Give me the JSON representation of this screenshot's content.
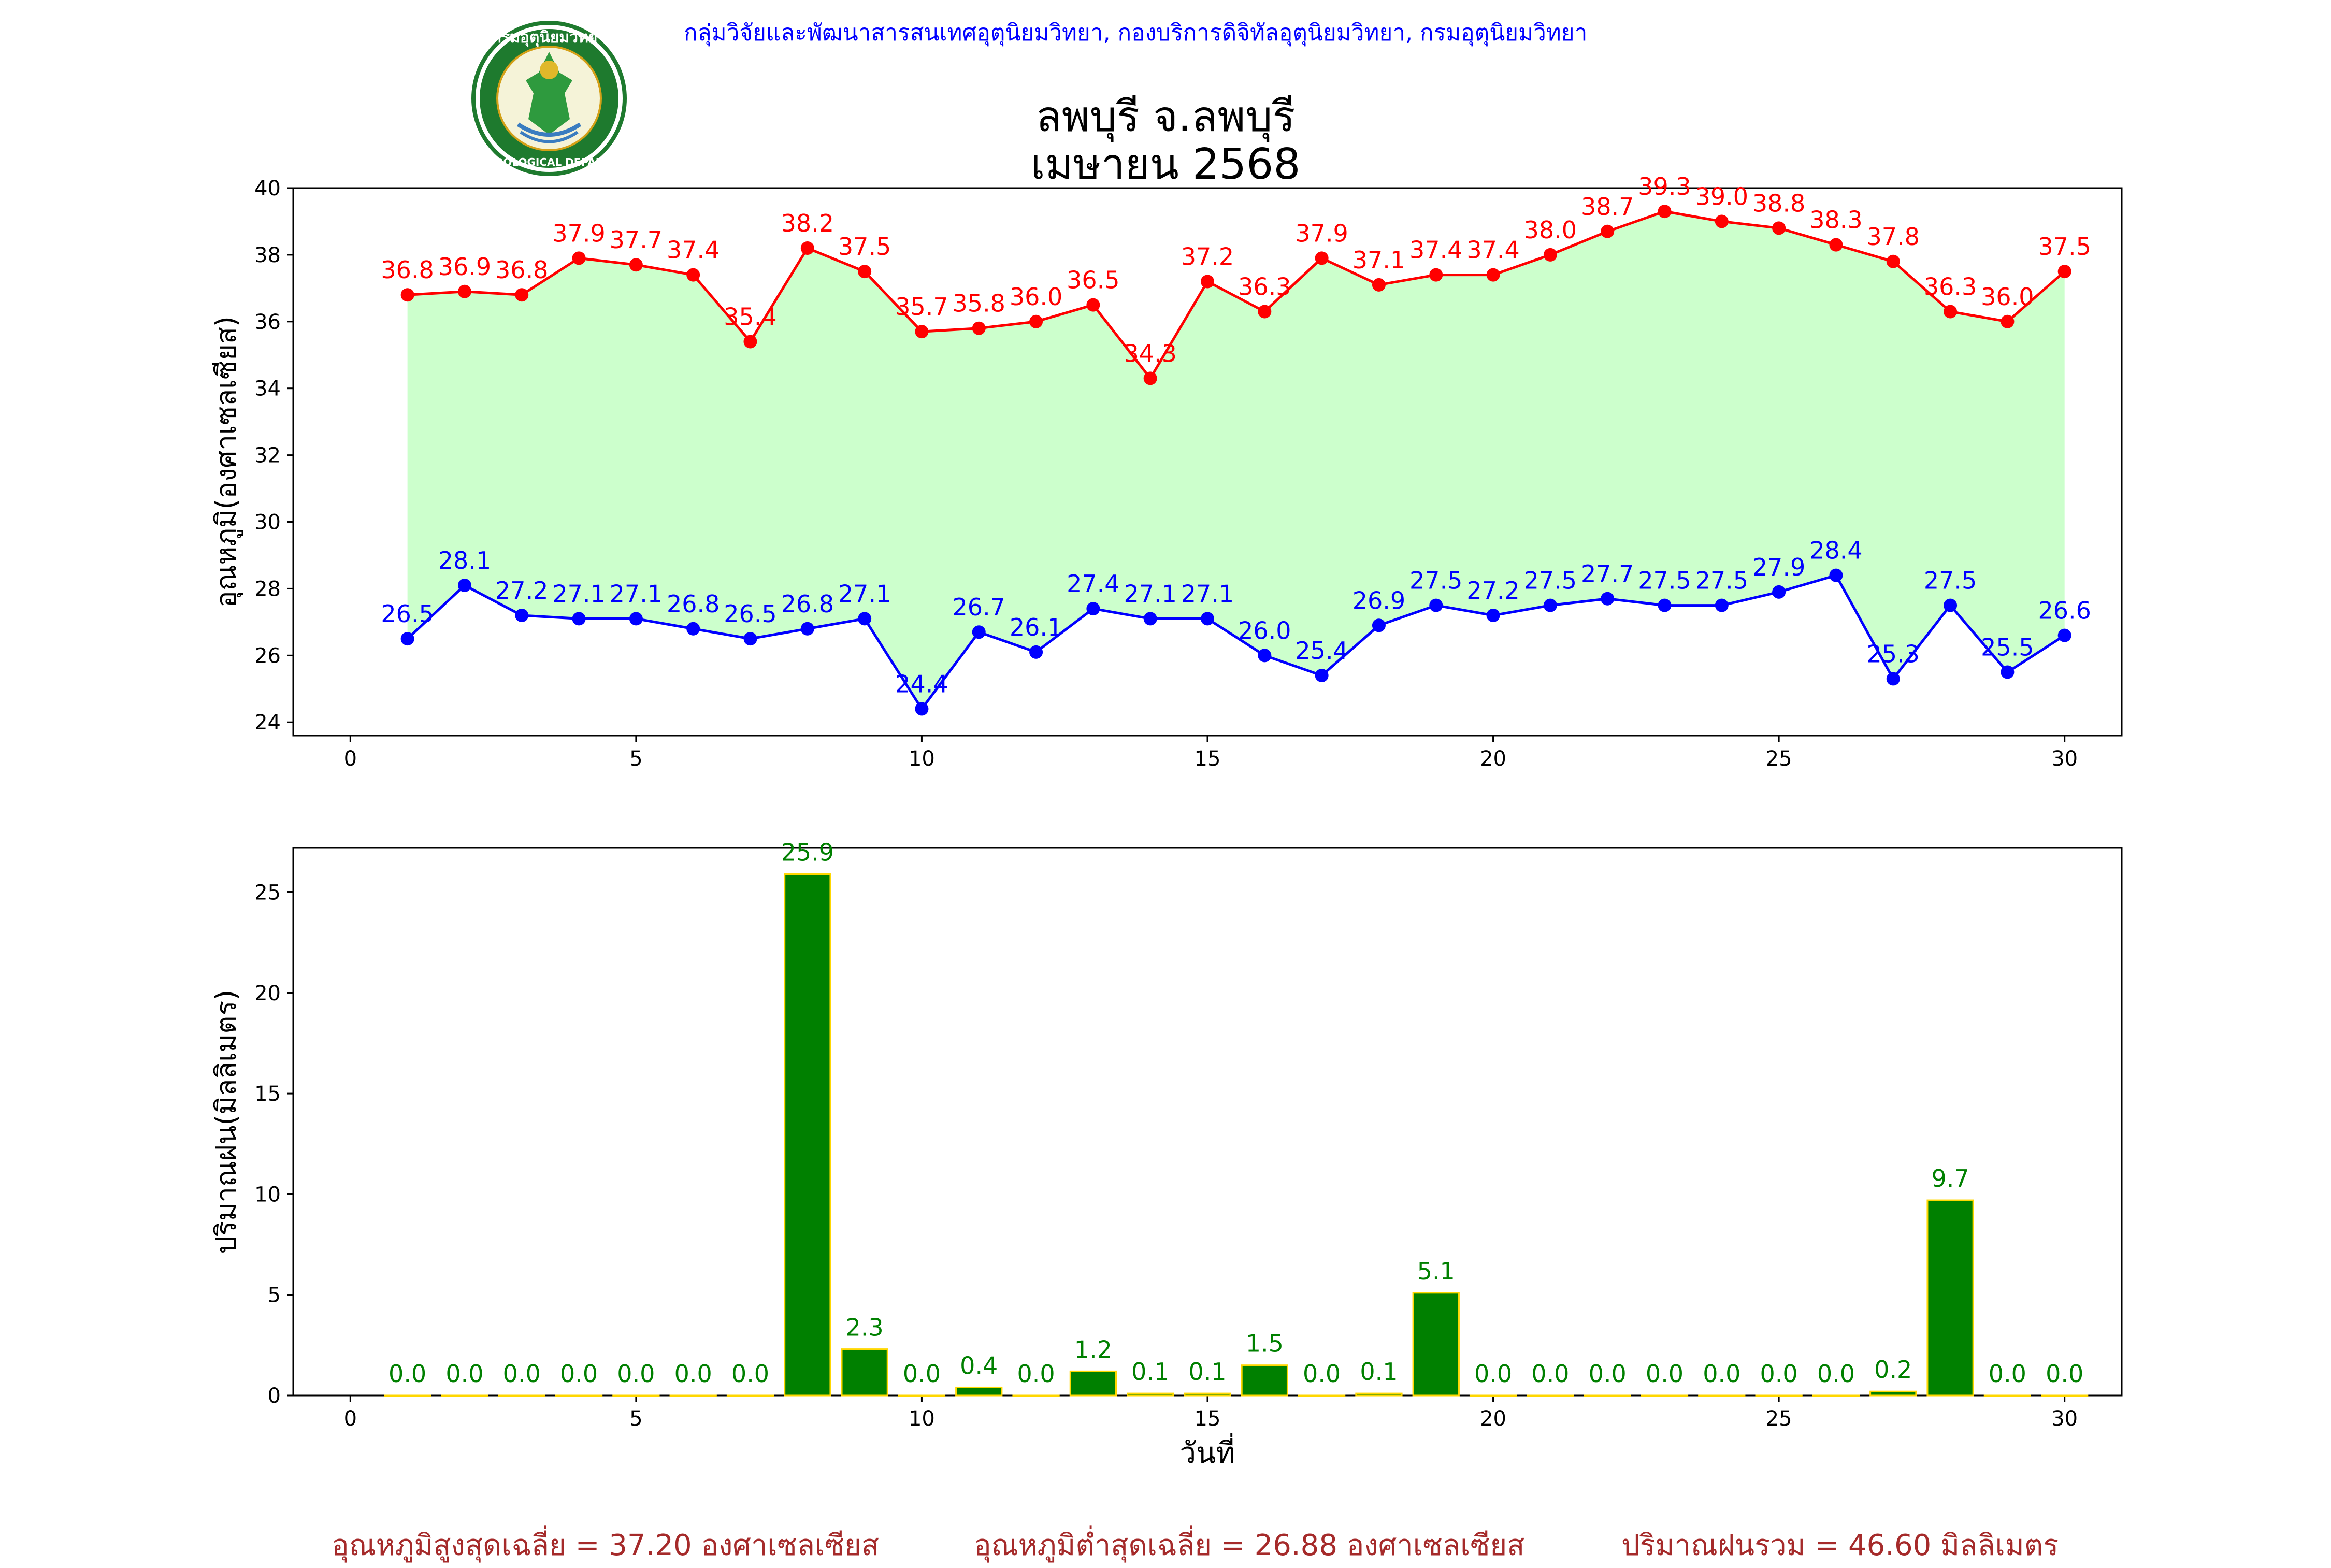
{
  "header": {
    "agency": "กลุ่มวิจัยและพัฒนาสารสนเทศอุตุนิยมวิทยา, กองบริการดิจิทัลอุตุนิยมวิทยา, กรมอุตุนิยมวิทยา",
    "title_line1": "ลพบุรี จ.ลพบุรี",
    "title_line2": "เมษายน 2568",
    "logo_text_top": "กรมอุตุนิยมวิทยา",
    "logo_text_bottom": "METEOROLOGICAL DEPARTMENT"
  },
  "colors": {
    "max": "#ff0000",
    "min": "#0000ff",
    "fill": "#ccffcc",
    "rain_bar": "#008000",
    "rain_edge": "#ffd700",
    "rain_label": "#008000",
    "footer": "#a52a2a",
    "header": "#0000ff"
  },
  "chart_data": [
    {
      "type": "line",
      "ylabel": "อุณหภูมิ(องศาเซลเซียส)",
      "xlabel": "",
      "xlim": [
        -1,
        31
      ],
      "ylim": [
        23.6,
        40.0
      ],
      "xticks": [
        0,
        5,
        10,
        15,
        20,
        25,
        30
      ],
      "yticks": [
        24,
        26,
        28,
        30,
        32,
        34,
        36,
        38,
        40
      ],
      "fill_between": true,
      "x": [
        1,
        2,
        3,
        4,
        5,
        6,
        7,
        8,
        9,
        10,
        11,
        12,
        13,
        14,
        15,
        16,
        17,
        18,
        19,
        20,
        21,
        22,
        23,
        24,
        25,
        26,
        27,
        28,
        29,
        30
      ],
      "series": [
        {
          "key": "max",
          "values": [
            36.8,
            36.9,
            36.8,
            37.9,
            37.7,
            37.4,
            35.4,
            38.2,
            37.5,
            35.7,
            35.8,
            36.0,
            36.5,
            34.3,
            37.2,
            36.3,
            37.9,
            37.1,
            37.4,
            37.4,
            38.0,
            38.7,
            39.3,
            39.0,
            38.8,
            38.3,
            37.8,
            36.3,
            36.0,
            37.5
          ]
        },
        {
          "key": "min",
          "values": [
            26.5,
            28.1,
            27.2,
            27.1,
            27.1,
            26.8,
            26.5,
            26.8,
            27.1,
            24.4,
            26.7,
            26.1,
            27.4,
            27.1,
            27.1,
            26.0,
            25.4,
            26.9,
            27.5,
            27.2,
            27.5,
            27.7,
            27.5,
            27.5,
            27.9,
            28.4,
            25.3,
            27.5,
            25.5,
            26.6
          ]
        }
      ]
    },
    {
      "type": "bar",
      "ylabel": "ปริมาณฝน(มิลลิเมตร)",
      "xlabel": "วันที่",
      "xlim": [
        -1,
        31
      ],
      "ylim": [
        0,
        27.2
      ],
      "xticks": [
        0,
        5,
        10,
        15,
        20,
        25,
        30
      ],
      "yticks": [
        0,
        5,
        10,
        15,
        20,
        25
      ],
      "x": [
        1,
        2,
        3,
        4,
        5,
        6,
        7,
        8,
        9,
        10,
        11,
        12,
        13,
        14,
        15,
        16,
        17,
        18,
        19,
        20,
        21,
        22,
        23,
        24,
        25,
        26,
        27,
        28,
        29,
        30
      ],
      "values": [
        0.0,
        0.0,
        0.0,
        0.0,
        0.0,
        0.0,
        0.0,
        25.9,
        2.3,
        0.0,
        0.4,
        0.0,
        1.2,
        0.1,
        0.1,
        1.5,
        0.0,
        0.1,
        5.1,
        0.0,
        0.0,
        0.0,
        0.0,
        0.0,
        0.0,
        0.0,
        0.2,
        9.7,
        0.0,
        0.0
      ]
    }
  ],
  "footer": {
    "avg_max": "อุณหภูมิสูงสุดเฉลี่ย = 37.20 องศาเซลเซียส",
    "avg_min": "อุณหภูมิต่ำสุดเฉลี่ย = 26.88 องศาเซลเซียส",
    "total_rain": "ปริมาณฝนรวม = 46.60 มิลลิเมตร"
  }
}
